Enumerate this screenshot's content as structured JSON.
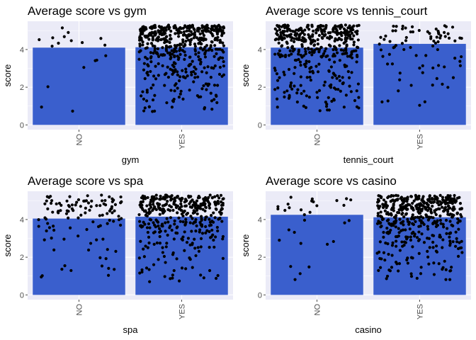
{
  "colors": {
    "panel_bg": "#ebebf7",
    "grid": "#ffffff",
    "bar": "#3a5fcd",
    "point": "#000000",
    "tick": "#4d4d4d"
  },
  "chart_data": [
    {
      "type": "bar",
      "title": "Average  score  vs  gym",
      "xlabel": "gym",
      "ylabel": "score",
      "categories": [
        "NO",
        "YES"
      ],
      "values": [
        4.1,
        4.12
      ],
      "ylim": [
        -0.25,
        5.5
      ],
      "yticks": [
        "0",
        "2",
        "4"
      ],
      "jitter_points": true,
      "point_counts": [
        18,
        480
      ],
      "grid": true
    },
    {
      "type": "bar",
      "title": "Average  score  vs  tennis_court",
      "xlabel": "tennis_court",
      "ylabel": "score",
      "categories": [
        "NO",
        "YES"
      ],
      "values": [
        4.1,
        4.3
      ],
      "ylim": [
        -0.25,
        5.5
      ],
      "yticks": [
        "0",
        "2",
        "4"
      ],
      "jitter_points": true,
      "point_counts": [
        420,
        80
      ],
      "grid": true
    },
    {
      "type": "bar",
      "title": "Average  score  vs  spa",
      "xlabel": "spa",
      "ylabel": "score",
      "categories": [
        "NO",
        "YES"
      ],
      "values": [
        4.05,
        4.15
      ],
      "ylim": [
        -0.25,
        5.5
      ],
      "yticks": [
        "0",
        "2",
        "4"
      ],
      "jitter_points": true,
      "point_counts": [
        110,
        390
      ],
      "grid": true
    },
    {
      "type": "bar",
      "title": "Average  score  vs  casino",
      "xlabel": "casino",
      "ylabel": "score",
      "categories": [
        "NO",
        "YES"
      ],
      "values": [
        4.25,
        4.12
      ],
      "ylim": [
        -0.25,
        5.5
      ],
      "yticks": [
        "0",
        "2",
        "4"
      ],
      "jitter_points": true,
      "point_counts": [
        30,
        470
      ],
      "grid": true
    }
  ]
}
